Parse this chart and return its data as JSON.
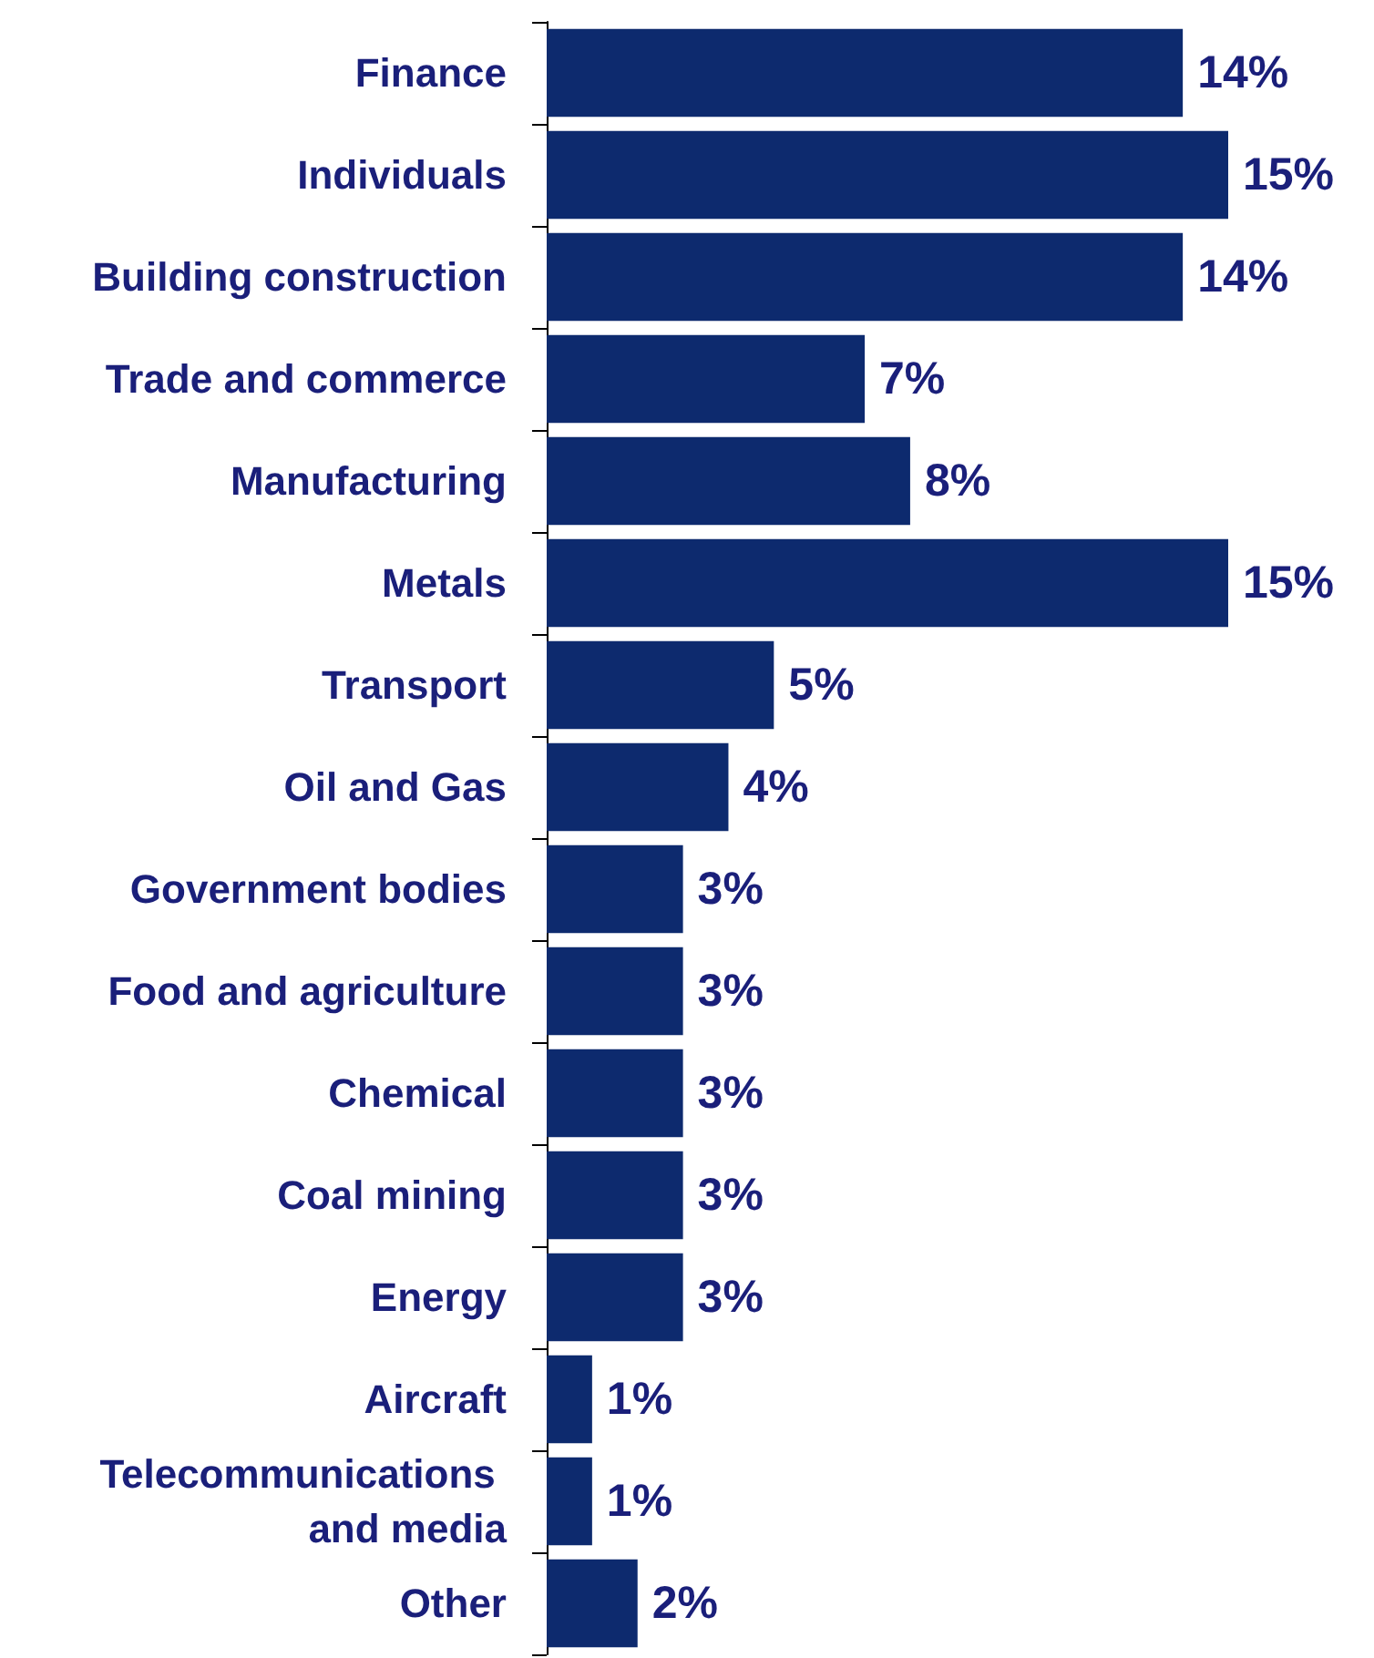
{
  "chart_data": {
    "type": "bar",
    "orientation": "horizontal",
    "categories": [
      "Finance",
      "Individuals",
      "Building construction",
      "Trade and commerce",
      "Manufacturing",
      "Metals",
      "Transport",
      "Oil and Gas",
      "Government bodies",
      "Food and agriculture",
      "Chemical",
      "Coal mining",
      "Energy",
      "Aircraft",
      "Telecommunications and media",
      "Other"
    ],
    "values": [
      14,
      15,
      14,
      7,
      8,
      15,
      5,
      4,
      3,
      3,
      3,
      3,
      3,
      1,
      1,
      2
    ],
    "value_labels": [
      "14%",
      "15%",
      "14%",
      "7%",
      "8%",
      "15%",
      "5%",
      "4%",
      "3%",
      "3%",
      "3%",
      "3%",
      "3%",
      "1%",
      "1%",
      "2%"
    ],
    "color": "#0d2a6e",
    "grid": false
  }
}
